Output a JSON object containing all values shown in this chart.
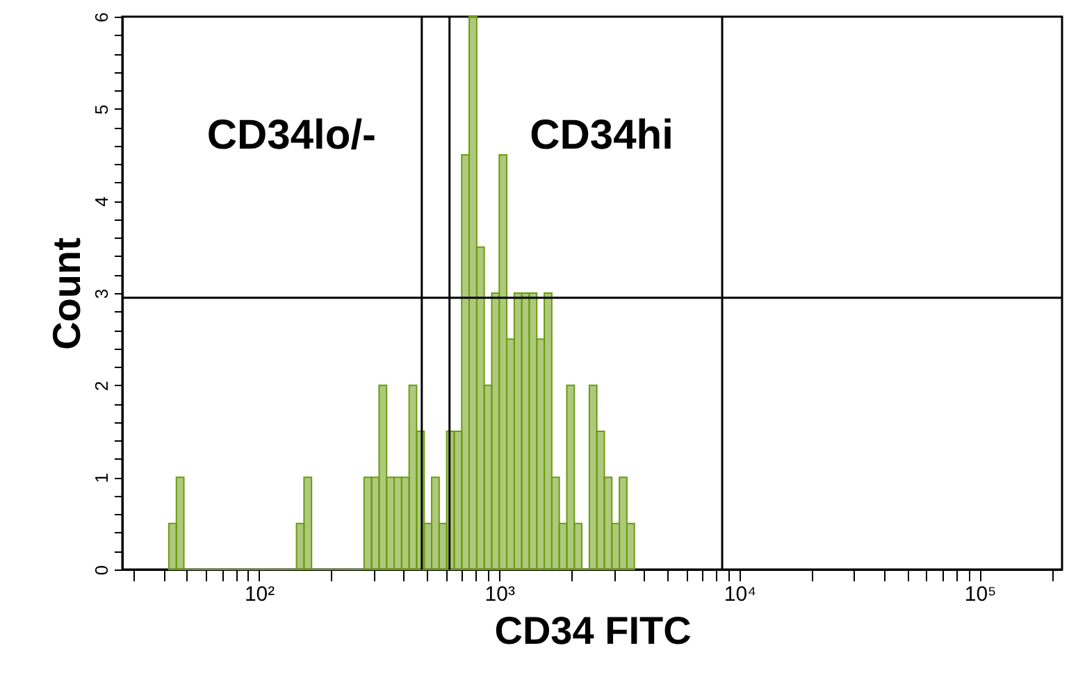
{
  "chart_data": {
    "type": "histogram",
    "xlabel": "CD34 FITC",
    "ylabel": "Count",
    "log": "x",
    "bins": [
      42.17,
      45.32,
      48.7,
      52.33,
      56.23,
      60.43,
      64.94,
      69.78,
      74.99,
      80.58,
      86.6,
      93.06,
      100,
      107.46,
      115.48,
      124.09,
      133.35,
      143.3,
      153.99,
      165.48,
      177.83,
      191.1,
      205.35,
      220.67,
      237.14,
      254.83,
      273.84,
      294.27,
      316.23,
      339.82,
      365.17,
      392.42,
      421.7,
      453.16,
      486.97,
      523.3,
      562.34,
      604.3,
      649.38,
      697.83,
      749.89,
      805.84,
      865.96,
      930.57,
      1000,
      1074.6,
      1154.8,
      1240.9,
      1333.5,
      1433.0,
      1539.9,
      1654.8,
      1778.3,
      1911.0,
      2053.5,
      2206.7,
      2371.4,
      2548.3,
      2738.4,
      2942.7,
      3162.3,
      3398.2,
      3651.7
    ],
    "values": [
      0.5,
      1,
      0,
      0,
      0,
      0,
      0,
      0,
      0,
      0,
      0,
      0,
      0,
      0,
      0,
      0,
      0,
      0.5,
      1,
      0,
      0,
      0,
      0,
      0,
      0,
      0,
      1,
      1,
      2,
      1,
      1,
      1,
      2,
      1.5,
      0.5,
      1,
      0.5,
      1.5,
      1.5,
      4.5,
      6,
      3.5,
      2,
      3,
      4.5,
      2.5,
      3,
      3,
      3,
      2.5,
      3,
      1,
      0.5,
      2,
      0.5,
      0,
      2,
      1.5,
      1,
      0.5,
      1,
      0.5
    ],
    "color": "#6b9c10",
    "xlim": [
      27,
      220000
    ],
    "xticks": [
      {
        "value": 30,
        "label": null
      },
      {
        "value": 40,
        "label": null
      },
      {
        "value": 50,
        "label": null
      },
      {
        "value": 60,
        "label": null
      },
      {
        "value": 70,
        "label": null
      },
      {
        "value": 80,
        "label": null
      },
      {
        "value": 90,
        "label": null
      },
      {
        "value": 100,
        "label": "10²"
      },
      {
        "value": 200,
        "label": null
      },
      {
        "value": 300,
        "label": null
      },
      {
        "value": 400,
        "label": null
      },
      {
        "value": 500,
        "label": null
      },
      {
        "value": 600,
        "label": null
      },
      {
        "value": 700,
        "label": null
      },
      {
        "value": 800,
        "label": null
      },
      {
        "value": 900,
        "label": null
      },
      {
        "value": 1000,
        "label": "10³"
      },
      {
        "value": 2000,
        "label": null
      },
      {
        "value": 3000,
        "label": null
      },
      {
        "value": 4000,
        "label": null
      },
      {
        "value": 5000,
        "label": null
      },
      {
        "value": 6000,
        "label": null
      },
      {
        "value": 7000,
        "label": null
      },
      {
        "value": 8000,
        "label": null
      },
      {
        "value": 9000,
        "label": null
      },
      {
        "value": 10000,
        "label": "10⁴"
      },
      {
        "value": 20000,
        "label": null
      },
      {
        "value": 30000,
        "label": null
      },
      {
        "value": 40000,
        "label": null
      },
      {
        "value": 50000,
        "label": null
      },
      {
        "value": 60000,
        "label": null
      },
      {
        "value": 70000,
        "label": null
      },
      {
        "value": 80000,
        "label": null
      },
      {
        "value": 90000,
        "label": null
      },
      {
        "value": 100000,
        "label": "10⁵"
      },
      {
        "value": 200000,
        "label": null
      }
    ],
    "ylim": [
      0,
      6
    ],
    "yticks": [
      0,
      {
        "value": 0.2,
        "label": null
      },
      {
        "value": 0.4,
        "label": null
      },
      {
        "value": 0.6,
        "label": null
      },
      {
        "value": 0.8,
        "label": null
      },
      1,
      {
        "value": 1.2,
        "label": null
      },
      {
        "value": 1.4,
        "label": null
      },
      {
        "value": 1.6,
        "label": null
      },
      {
        "value": 1.8,
        "label": null
      },
      2,
      {
        "value": 2.2,
        "label": null
      },
      {
        "value": 2.4,
        "label": null
      },
      {
        "value": 2.6,
        "label": null
      },
      {
        "value": 2.8,
        "label": null
      },
      3,
      {
        "value": 3.2,
        "label": null
      },
      {
        "value": 3.4,
        "label": null
      },
      {
        "value": 3.6,
        "label": null
      },
      {
        "value": 3.8,
        "label": null
      },
      4,
      {
        "value": 4.2,
        "label": null
      },
      {
        "value": 4.4,
        "label": null
      },
      {
        "value": 4.6,
        "label": null
      },
      {
        "value": 4.8,
        "label": null
      },
      5,
      {
        "value": 5.2,
        "label": null
      },
      {
        "value": 5.4,
        "label": null
      },
      {
        "value": 5.6,
        "label": null
      },
      {
        "value": 5.8,
        "label": null
      },
      6
    ],
    "grid": false,
    "ref_lines": [
      {
        "axis": "x",
        "value": 476,
        "color": "#000000"
      },
      {
        "axis": "x",
        "value": 621,
        "color": "#000000"
      },
      {
        "axis": "x",
        "value": 8470,
        "color": "#000000"
      },
      {
        "axis": "y",
        "value": 2.95,
        "color": "#000000"
      }
    ],
    "annotations": [
      "CD34lo/-",
      "CD34hi"
    ]
  }
}
